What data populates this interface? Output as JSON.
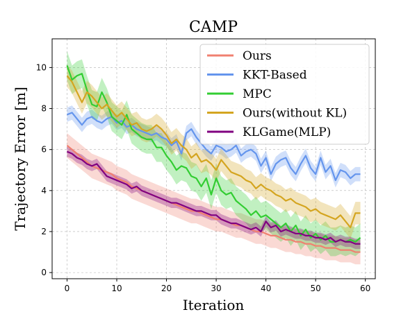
{
  "chart_data": {
    "type": "line",
    "title": "CAMP",
    "xlabel": "Iteration",
    "ylabel": "Trajectory Error [m]",
    "xlim": [
      -3,
      62
    ],
    "ylim": [
      -0.3,
      11.4
    ],
    "xticks": [
      0,
      10,
      20,
      30,
      40,
      50,
      60
    ],
    "yticks": [
      0,
      2,
      4,
      6,
      8,
      10
    ],
    "grid": true,
    "legend_position": "top-right",
    "x": [
      0,
      1,
      2,
      3,
      4,
      5,
      6,
      7,
      8,
      9,
      10,
      11,
      12,
      13,
      14,
      15,
      16,
      17,
      18,
      19,
      20,
      21,
      22,
      23,
      24,
      25,
      26,
      27,
      28,
      29,
      30,
      31,
      32,
      33,
      34,
      35,
      36,
      37,
      38,
      39,
      40,
      41,
      42,
      43,
      44,
      45,
      46,
      47,
      48,
      49,
      50,
      51,
      52,
      53,
      54,
      55,
      56,
      57,
      58,
      59
    ],
    "series": [
      {
        "name": "Ours",
        "color": "#f08070",
        "values": [
          6.2,
          6.0,
          5.8,
          5.6,
          5.4,
          5.2,
          5.1,
          5.0,
          4.9,
          4.8,
          4.6,
          4.5,
          4.4,
          4.2,
          4.1,
          4.0,
          3.9,
          3.8,
          3.7,
          3.6,
          3.5,
          3.4,
          3.3,
          3.2,
          3.1,
          3.0,
          3.0,
          2.9,
          2.8,
          2.7,
          2.6,
          2.6,
          2.5,
          2.4,
          2.3,
          2.3,
          2.2,
          2.1,
          2.0,
          2.0,
          1.9,
          1.8,
          1.8,
          1.7,
          1.6,
          1.6,
          1.5,
          1.5,
          1.4,
          1.4,
          1.3,
          1.3,
          1.2,
          1.2,
          1.2,
          1.1,
          1.1,
          1.1,
          1.0,
          1.0
        ],
        "band": 0.6
      },
      {
        "name": "KKT-Based",
        "color": "#6495ed",
        "values": [
          7.7,
          7.8,
          7.5,
          7.2,
          7.5,
          7.6,
          7.4,
          7.3,
          7.5,
          7.6,
          7.3,
          7.4,
          7.1,
          7.2,
          7.0,
          6.9,
          6.8,
          6.7,
          6.8,
          6.6,
          6.5,
          6.2,
          6.4,
          5.8,
          6.8,
          7.0,
          6.6,
          6.3,
          6.0,
          5.8,
          6.2,
          6.1,
          5.9,
          6.0,
          6.2,
          5.7,
          5.9,
          6.0,
          5.8,
          5.2,
          5.6,
          4.8,
          5.3,
          5.5,
          5.6,
          5.1,
          4.8,
          5.3,
          5.7,
          5.1,
          4.8,
          5.6,
          4.9,
          5.2,
          4.5,
          5.0,
          4.9,
          4.6,
          4.8,
          4.8
        ],
        "band": 0.35
      },
      {
        "name": "MPC",
        "color": "#32cd32",
        "values": [
          10.1,
          9.4,
          9.6,
          9.7,
          8.9,
          8.2,
          8.1,
          8.8,
          8.3,
          7.6,
          7.4,
          7.2,
          7.7,
          7.0,
          6.8,
          6.6,
          6.5,
          6.5,
          6.1,
          6.1,
          5.7,
          5.4,
          5.0,
          5.2,
          5.1,
          4.7,
          4.6,
          4.2,
          4.6,
          3.8,
          4.6,
          4.0,
          3.8,
          3.9,
          3.5,
          3.3,
          3.1,
          2.8,
          3.0,
          2.7,
          2.8,
          2.6,
          2.4,
          2.2,
          2.4,
          2.0,
          2.3,
          1.8,
          2.1,
          1.7,
          1.9,
          1.6,
          1.8,
          1.5,
          1.5,
          1.6,
          1.5,
          1.6,
          1.5,
          1.7
        ],
        "band": 0.7
      },
      {
        "name": "Ours(without KL)",
        "color": "#d4a520",
        "values": [
          9.6,
          9.3,
          8.8,
          8.3,
          8.8,
          8.6,
          8.3,
          8.0,
          8.2,
          7.9,
          7.6,
          7.8,
          7.5,
          7.2,
          7.3,
          7.0,
          6.9,
          7.0,
          7.2,
          7.0,
          6.7,
          6.3,
          6.5,
          6.2,
          6.0,
          5.6,
          5.8,
          5.4,
          5.5,
          5.3,
          5.0,
          5.5,
          5.2,
          4.9,
          4.8,
          4.7,
          4.5,
          4.4,
          4.1,
          4.3,
          4.1,
          4.0,
          3.8,
          3.7,
          3.5,
          3.6,
          3.4,
          3.3,
          3.2,
          3.0,
          3.1,
          2.9,
          2.8,
          2.7,
          2.6,
          2.8,
          2.5,
          2.2,
          2.9,
          2.9
        ],
        "band": 0.55
      },
      {
        "name": "KLGame(MLP)",
        "color": "#800080",
        "values": [
          5.9,
          5.8,
          5.6,
          5.5,
          5.3,
          5.2,
          5.3,
          5.0,
          4.7,
          4.6,
          4.5,
          4.4,
          4.3,
          4.1,
          4.2,
          4.0,
          3.9,
          3.8,
          3.7,
          3.6,
          3.5,
          3.4,
          3.4,
          3.3,
          3.2,
          3.1,
          3.0,
          3.0,
          2.9,
          2.8,
          2.8,
          2.6,
          2.5,
          2.4,
          2.4,
          2.3,
          2.2,
          2.1,
          2.2,
          2.0,
          2.5,
          2.2,
          2.3,
          2.0,
          2.1,
          2.0,
          1.9,
          1.9,
          1.8,
          1.8,
          1.7,
          1.7,
          1.6,
          1.7,
          1.5,
          1.6,
          1.5,
          1.5,
          1.4,
          1.4
        ],
        "band": 0.25
      }
    ]
  }
}
